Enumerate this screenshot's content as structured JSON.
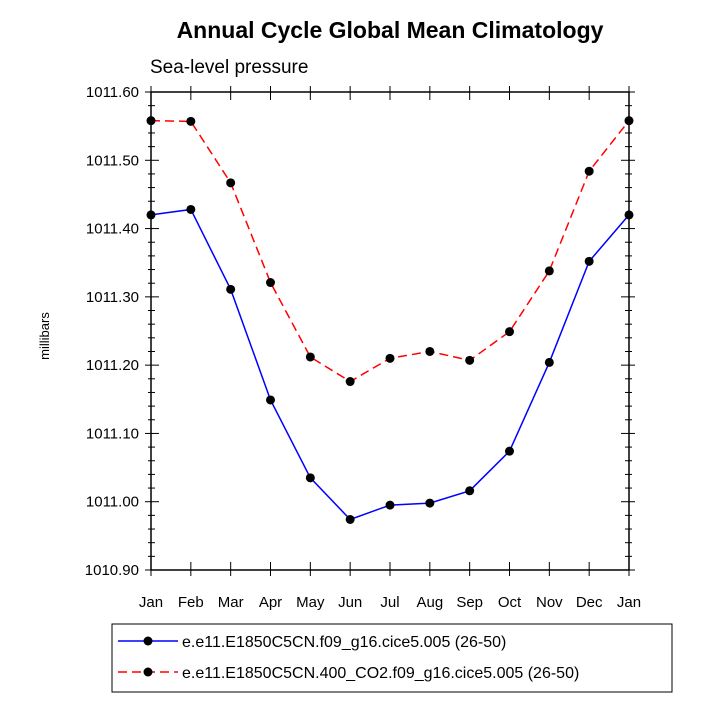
{
  "chart_data": {
    "type": "line",
    "title": "Annual Cycle Global Mean Climatology",
    "subtitle": "Sea-level pressure",
    "xlabel": "",
    "ylabel": "millibars",
    "categories": [
      "Jan",
      "Feb",
      "Mar",
      "Apr",
      "May",
      "Jun",
      "Jul",
      "Aug",
      "Sep",
      "Oct",
      "Nov",
      "Dec",
      "Jan"
    ],
    "ylim": [
      1010.9,
      1011.6
    ],
    "yticks": [
      "1010.90",
      "1011.00",
      "1011.10",
      "1011.20",
      "1011.30",
      "1011.40",
      "1011.50",
      "1011.60"
    ],
    "grid": false,
    "legend_position": "bottom",
    "series": [
      {
        "name": "e.e11.E1850C5CN.f09_g16.cice5.005 (26-50)",
        "color": "#0000ff",
        "line_style": "solid",
        "marker": "filled-circle",
        "values": [
          1011.42,
          1011.428,
          1011.311,
          1011.149,
          1011.035,
          1010.974,
          1010.995,
          1010.998,
          1011.016,
          1011.074,
          1011.204,
          1011.352,
          1011.42
        ]
      },
      {
        "name": "e.e11.E1850C5CN.400_CO2.f09_g16.cice5.005 (26-50)",
        "color": "#ff0000",
        "line_style": "dashed",
        "marker": "filled-circle",
        "values": [
          1011.558,
          1011.557,
          1011.467,
          1011.321,
          1011.212,
          1011.176,
          1011.21,
          1011.22,
          1011.207,
          1011.249,
          1011.338,
          1011.484,
          1011.558
        ]
      }
    ]
  }
}
